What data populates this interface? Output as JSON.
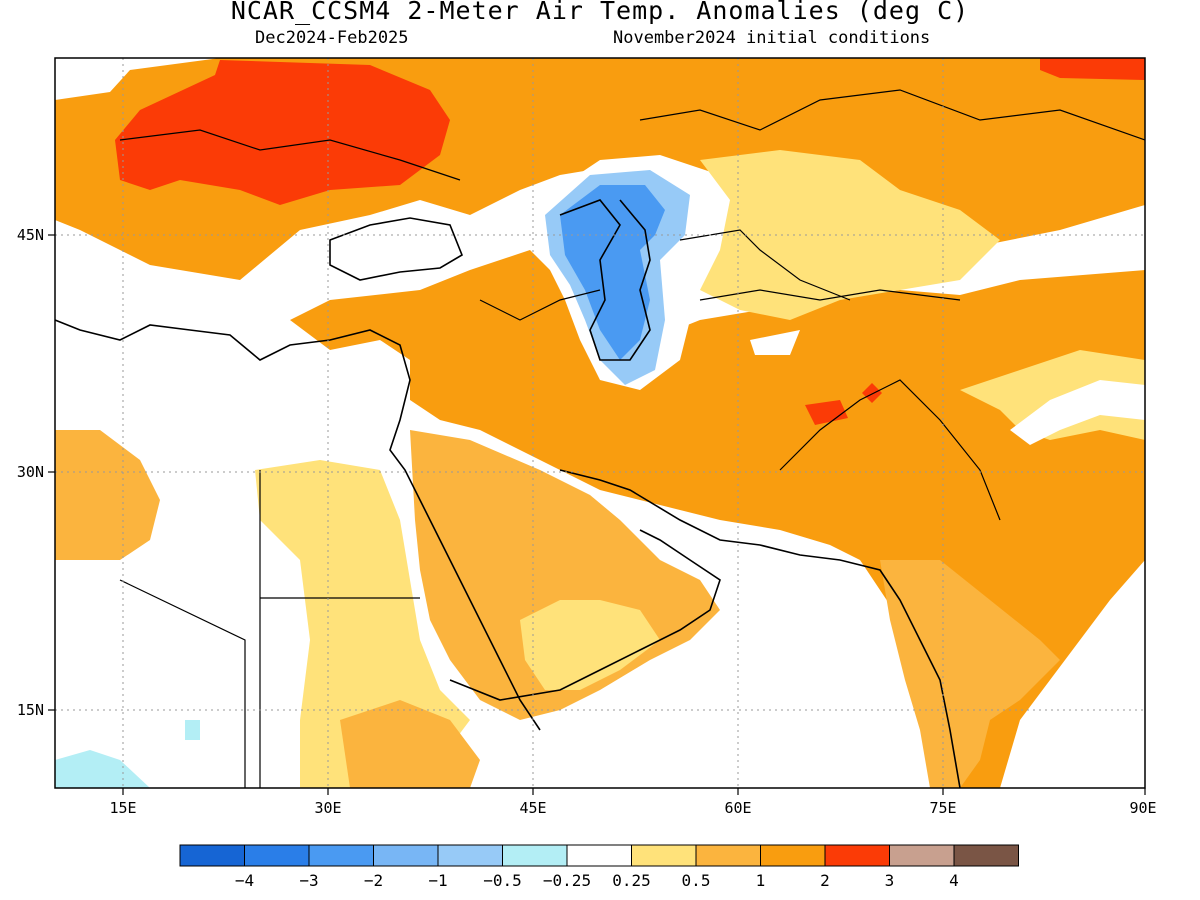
{
  "title": "NCAR_CCSM4 2-Meter Air Temp. Anomalies (deg C)",
  "subtitle_left": "Dec2024-Feb2025",
  "subtitle_right": "November2024 initial conditions",
  "map": {
    "lon_range": [
      10,
      90
    ],
    "lat_range": [
      8,
      53
    ],
    "lon_ticks": [
      "15E",
      "30E",
      "45E",
      "60E",
      "75E",
      "90E"
    ],
    "lat_ticks": [
      "45N",
      "30N",
      "15N"
    ],
    "grid": "dotted"
  },
  "legend": {
    "labels": [
      "−4",
      "−3",
      "−2",
      "−1",
      "−0.5",
      "−0.25",
      "0.25",
      "0.5",
      "1",
      "2",
      "3",
      "4"
    ],
    "colors": [
      "#1665d4",
      "#2a7ee8",
      "#4a9af2",
      "#78b6f5",
      "#97caf7",
      "#b3eef5",
      "#ffffff",
      "#ffe27a",
      "#fbb43e",
      "#f99d0f",
      "#fb3b06",
      "#c8a08f",
      "#7a5545"
    ]
  },
  "regions": [
    {
      "name": "europe-warm-core",
      "level": "2-3"
    },
    {
      "name": "caspian-cool-anomaly",
      "level": "-1 to -0.25"
    },
    {
      "name": "afghanistan-warm-spot",
      "level": "2-3"
    }
  ]
}
